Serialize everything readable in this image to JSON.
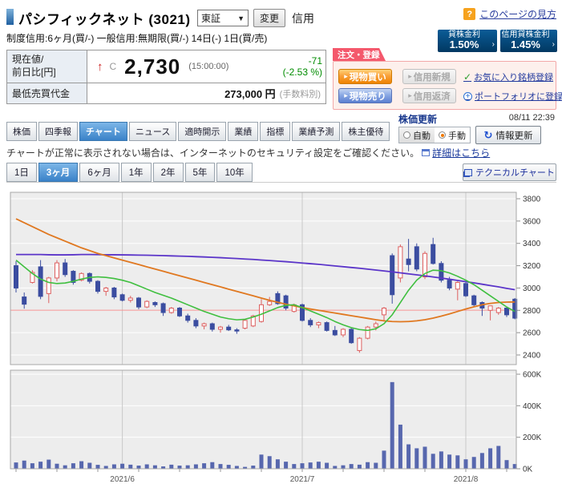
{
  "header": {
    "title": "パシフィックネット (3021)",
    "exchange": "東証",
    "change_button": "変更",
    "credit_type": "信用",
    "credit_terms": "制度信用:6ヶ月(買/-)  一般信用:無期限(買/-)  14日(-)  1日(買/売)",
    "help_icon": "?",
    "help_link": "このページの見方"
  },
  "rates": [
    {
      "label": "貸株金利",
      "value": "1.50%"
    },
    {
      "label": "信用貸株金利",
      "value": "1.45%"
    }
  ],
  "quote": {
    "row1_label_l1": "現在値/",
    "row1_label_l2": "前日比[円]",
    "direction_icon": "↑",
    "close_marker": "C",
    "price": "2,730",
    "time": "(15:00:00)",
    "change": "-71",
    "change_pct": "(-2.53 %)",
    "row2_label": "最低売買代金",
    "row2_value": "273,000 円",
    "row2_note": "(手数料別)"
  },
  "order_panel": {
    "title": "注文・登録",
    "buy_cash": "現物買い",
    "margin_new": "信用新規",
    "sell_cash": "現物売り",
    "margin_repay": "信用返済",
    "favorite_link": "お気に入り銘柄登録",
    "portfolio_link": "ポートフォリオに登録"
  },
  "update_panel": {
    "title": "株価更新",
    "timestamp": "08/11 22:39",
    "auto_label": "自動",
    "manual_label": "手動",
    "refresh_label": "情報更新"
  },
  "tabs": [
    {
      "label": "株価",
      "active": false
    },
    {
      "label": "四季報",
      "active": false
    },
    {
      "label": "チャート",
      "active": true
    },
    {
      "label": "ニュース",
      "active": false
    },
    {
      "label": "適時開示",
      "active": false
    },
    {
      "label": "業績",
      "active": false
    },
    {
      "label": "指標",
      "active": false
    },
    {
      "label": "業績予測",
      "active": false
    },
    {
      "label": "株主優待",
      "active": false
    }
  ],
  "notice": {
    "text": "チャートが正常に表示されない場合は、インターネットのセキュリティ設定をご確認ください。",
    "link_label": "詳細はこちら"
  },
  "periods": [
    {
      "label": "1日",
      "active": false
    },
    {
      "label": "3ヶ月",
      "active": true
    },
    {
      "label": "6ヶ月",
      "active": false
    },
    {
      "label": "1年",
      "active": false
    },
    {
      "label": "2年",
      "active": false
    },
    {
      "label": "5年",
      "active": false
    },
    {
      "label": "10年",
      "active": false
    }
  ],
  "technical_button": {
    "label": "テクニカルチャート"
  },
  "chart_data": {
    "type": "candlestick",
    "period": "3ヶ月 日足",
    "price_axis": {
      "min": 2400,
      "max": 3800,
      "step": 200
    },
    "volume_axis": {
      "max_k": 600,
      "labels": [
        [
          "600K",
          600
        ],
        [
          "400K",
          400
        ],
        [
          "200K",
          200
        ],
        [
          "0K",
          0
        ]
      ]
    },
    "prev_close_line": 2801,
    "x_labels": [
      {
        "label": "2021/6",
        "index": 13
      },
      {
        "label": "2021/7",
        "index": 35
      },
      {
        "label": "2021/8",
        "index": 55
      }
    ],
    "colors": {
      "up": "#dd5f5f",
      "down": "#3b4da0",
      "volume": "#5767ae",
      "prev_close": "#f29090",
      "ma_short": "#3fbf3f",
      "ma_mid": "#e07820",
      "ma_long": "#5b35c9",
      "plot_bg": "#ededed",
      "grid": "#ffffff",
      "month_grid": "#c9c9c9",
      "border": "#a8a8a8"
    },
    "candles": [
      [
        3200,
        3240,
        2960,
        3000,
        40
      ],
      [
        2920,
        2960,
        2815,
        2855,
        52
      ],
      [
        3050,
        3160,
        3040,
        3140,
        35
      ],
      [
        3190,
        3250,
        2900,
        2925,
        45
      ],
      [
        2950,
        3100,
        2865,
        3090,
        58
      ],
      [
        3090,
        3250,
        3060,
        3225,
        32
      ],
      [
        3225,
        3260,
        3100,
        3120,
        22
      ],
      [
        3150,
        3160,
        3030,
        3050,
        35
      ],
      [
        3070,
        3140,
        3060,
        3130,
        48
      ],
      [
        3130,
        3140,
        3040,
        3060,
        38
      ],
      [
        3060,
        3070,
        2950,
        2970,
        25
      ],
      [
        2970,
        3010,
        2930,
        3000,
        18
      ],
      [
        3000,
        3010,
        2900,
        2920,
        28
      ],
      [
        2940,
        2950,
        2880,
        2890,
        32
      ],
      [
        2890,
        2930,
        2870,
        2910,
        26
      ],
      [
        2910,
        2920,
        2810,
        2830,
        20
      ],
      [
        2830,
        2890,
        2820,
        2880,
        28
      ],
      [
        2870,
        2880,
        2830,
        2850,
        22
      ],
      [
        2860,
        2870,
        2750,
        2780,
        15
      ],
      [
        2780,
        2830,
        2770,
        2820,
        26
      ],
      [
        2820,
        2830,
        2740,
        2750,
        20
      ],
      [
        2750,
        2770,
        2690,
        2710,
        22
      ],
      [
        2710,
        2730,
        2640,
        2660,
        28
      ],
      [
        2660,
        2690,
        2630,
        2680,
        35
      ],
      [
        2680,
        2690,
        2610,
        2630,
        42
      ],
      [
        2630,
        2660,
        2600,
        2650,
        30
      ],
      [
        2650,
        2670,
        2615,
        2625,
        25
      ],
      [
        2625,
        2640,
        2590,
        2620,
        18
      ],
      [
        2640,
        2720,
        2630,
        2710,
        12
      ],
      [
        2660,
        2760,
        2650,
        2750,
        20
      ],
      [
        2700,
        2900,
        2690,
        2850,
        90
      ],
      [
        2850,
        2920,
        2840,
        2880,
        80
      ],
      [
        2950,
        2970,
        2850,
        2860,
        60
      ],
      [
        2930,
        2940,
        2800,
        2820,
        45
      ],
      [
        2790,
        2860,
        2780,
        2850,
        30
      ],
      [
        2850,
        2860,
        2700,
        2710,
        35
      ],
      [
        2710,
        2730,
        2650,
        2670,
        40
      ],
      [
        2670,
        2700,
        2640,
        2690,
        45
      ],
      [
        2690,
        2700,
        2610,
        2620,
        38
      ],
      [
        2620,
        2660,
        2570,
        2580,
        18
      ],
      [
        2580,
        2640,
        2560,
        2630,
        22
      ],
      [
        2630,
        2640,
        2500,
        2510,
        30
      ],
      [
        2440,
        2560,
        2420,
        2550,
        26
      ],
      [
        2550,
        2660,
        2540,
        2650,
        42
      ],
      [
        2650,
        2700,
        2620,
        2680,
        38
      ],
      [
        2760,
        2830,
        2700,
        2820,
        115
      ],
      [
        3290,
        3310,
        2860,
        2940,
        550
      ],
      [
        3090,
        3390,
        3050,
        3370,
        280
      ],
      [
        3260,
        3440,
        3150,
        3210,
        155
      ],
      [
        3370,
        3400,
        3150,
        3170,
        130
      ],
      [
        3100,
        3330,
        3080,
        3310,
        140
      ],
      [
        3390,
        3450,
        3210,
        3220,
        95
      ],
      [
        3220,
        3240,
        3050,
        3070,
        110
      ],
      [
        3070,
        3100,
        2980,
        3000,
        90
      ],
      [
        2990,
        3060,
        2890,
        3050,
        85
      ],
      [
        3040,
        3050,
        2920,
        2930,
        60
      ],
      [
        2930,
        2940,
        2830,
        2850,
        75
      ],
      [
        2870,
        2880,
        2750,
        2820,
        100
      ],
      [
        2800,
        2840,
        2710,
        2840,
        130
      ],
      [
        2780,
        2830,
        2760,
        2820,
        145
      ],
      [
        2820,
        2830,
        2740,
        2760,
        55
      ],
      [
        2900,
        2910,
        2720,
        2730,
        30
      ]
    ],
    "ma_lines": [
      {
        "name": "ma-short",
        "values": [
          3250,
          3190,
          3130,
          3080,
          3050,
          3040,
          3045,
          3060,
          3080,
          3095,
          3100,
          3095,
          3085,
          3070,
          3050,
          3020,
          2990,
          2960,
          2935,
          2910,
          2880,
          2850,
          2820,
          2790,
          2765,
          2740,
          2725,
          2715,
          2720,
          2740,
          2765,
          2795,
          2825,
          2845,
          2850,
          2825,
          2795,
          2765,
          2735,
          2700,
          2670,
          2645,
          2628,
          2620,
          2635,
          2680,
          2760,
          2870,
          2980,
          3070,
          3130,
          3160,
          3155,
          3135,
          3105,
          3070,
          3030,
          2980,
          2930,
          2880,
          2830,
          2790
        ]
      },
      {
        "name": "ma-mid",
        "values": [
          3620,
          3585,
          3550,
          3515,
          3480,
          3450,
          3420,
          3390,
          3360,
          3335,
          3310,
          3290,
          3270,
          3250,
          3230,
          3210,
          3190,
          3170,
          3150,
          3130,
          3110,
          3090,
          3070,
          3050,
          3030,
          3010,
          2990,
          2970,
          2950,
          2930,
          2910,
          2890,
          2872,
          2855,
          2840,
          2825,
          2812,
          2800,
          2788,
          2776,
          2764,
          2752,
          2740,
          2728,
          2716,
          2706,
          2700,
          2698,
          2700,
          2706,
          2716,
          2730,
          2748,
          2768,
          2790,
          2812,
          2832,
          2850,
          2862,
          2870,
          2874,
          2875
        ]
      },
      {
        "name": "ma-long",
        "values": [
          3300,
          3300,
          3300,
          3300,
          3298,
          3297,
          3297,
          3298,
          3300,
          3300,
          3299,
          3298,
          3298,
          3297,
          3296,
          3295,
          3294,
          3292,
          3290,
          3288,
          3286,
          3284,
          3281,
          3278,
          3275,
          3272,
          3268,
          3264,
          3260,
          3256,
          3251,
          3246,
          3241,
          3236,
          3230,
          3224,
          3218,
          3212,
          3205,
          3198,
          3191,
          3184,
          3177,
          3169,
          3161,
          3153,
          3145,
          3136,
          3127,
          3118,
          3109,
          3099,
          3089,
          3079,
          3068,
          3057,
          3046,
          3034,
          3022,
          3010,
          2997,
          2985
        ]
      }
    ]
  }
}
